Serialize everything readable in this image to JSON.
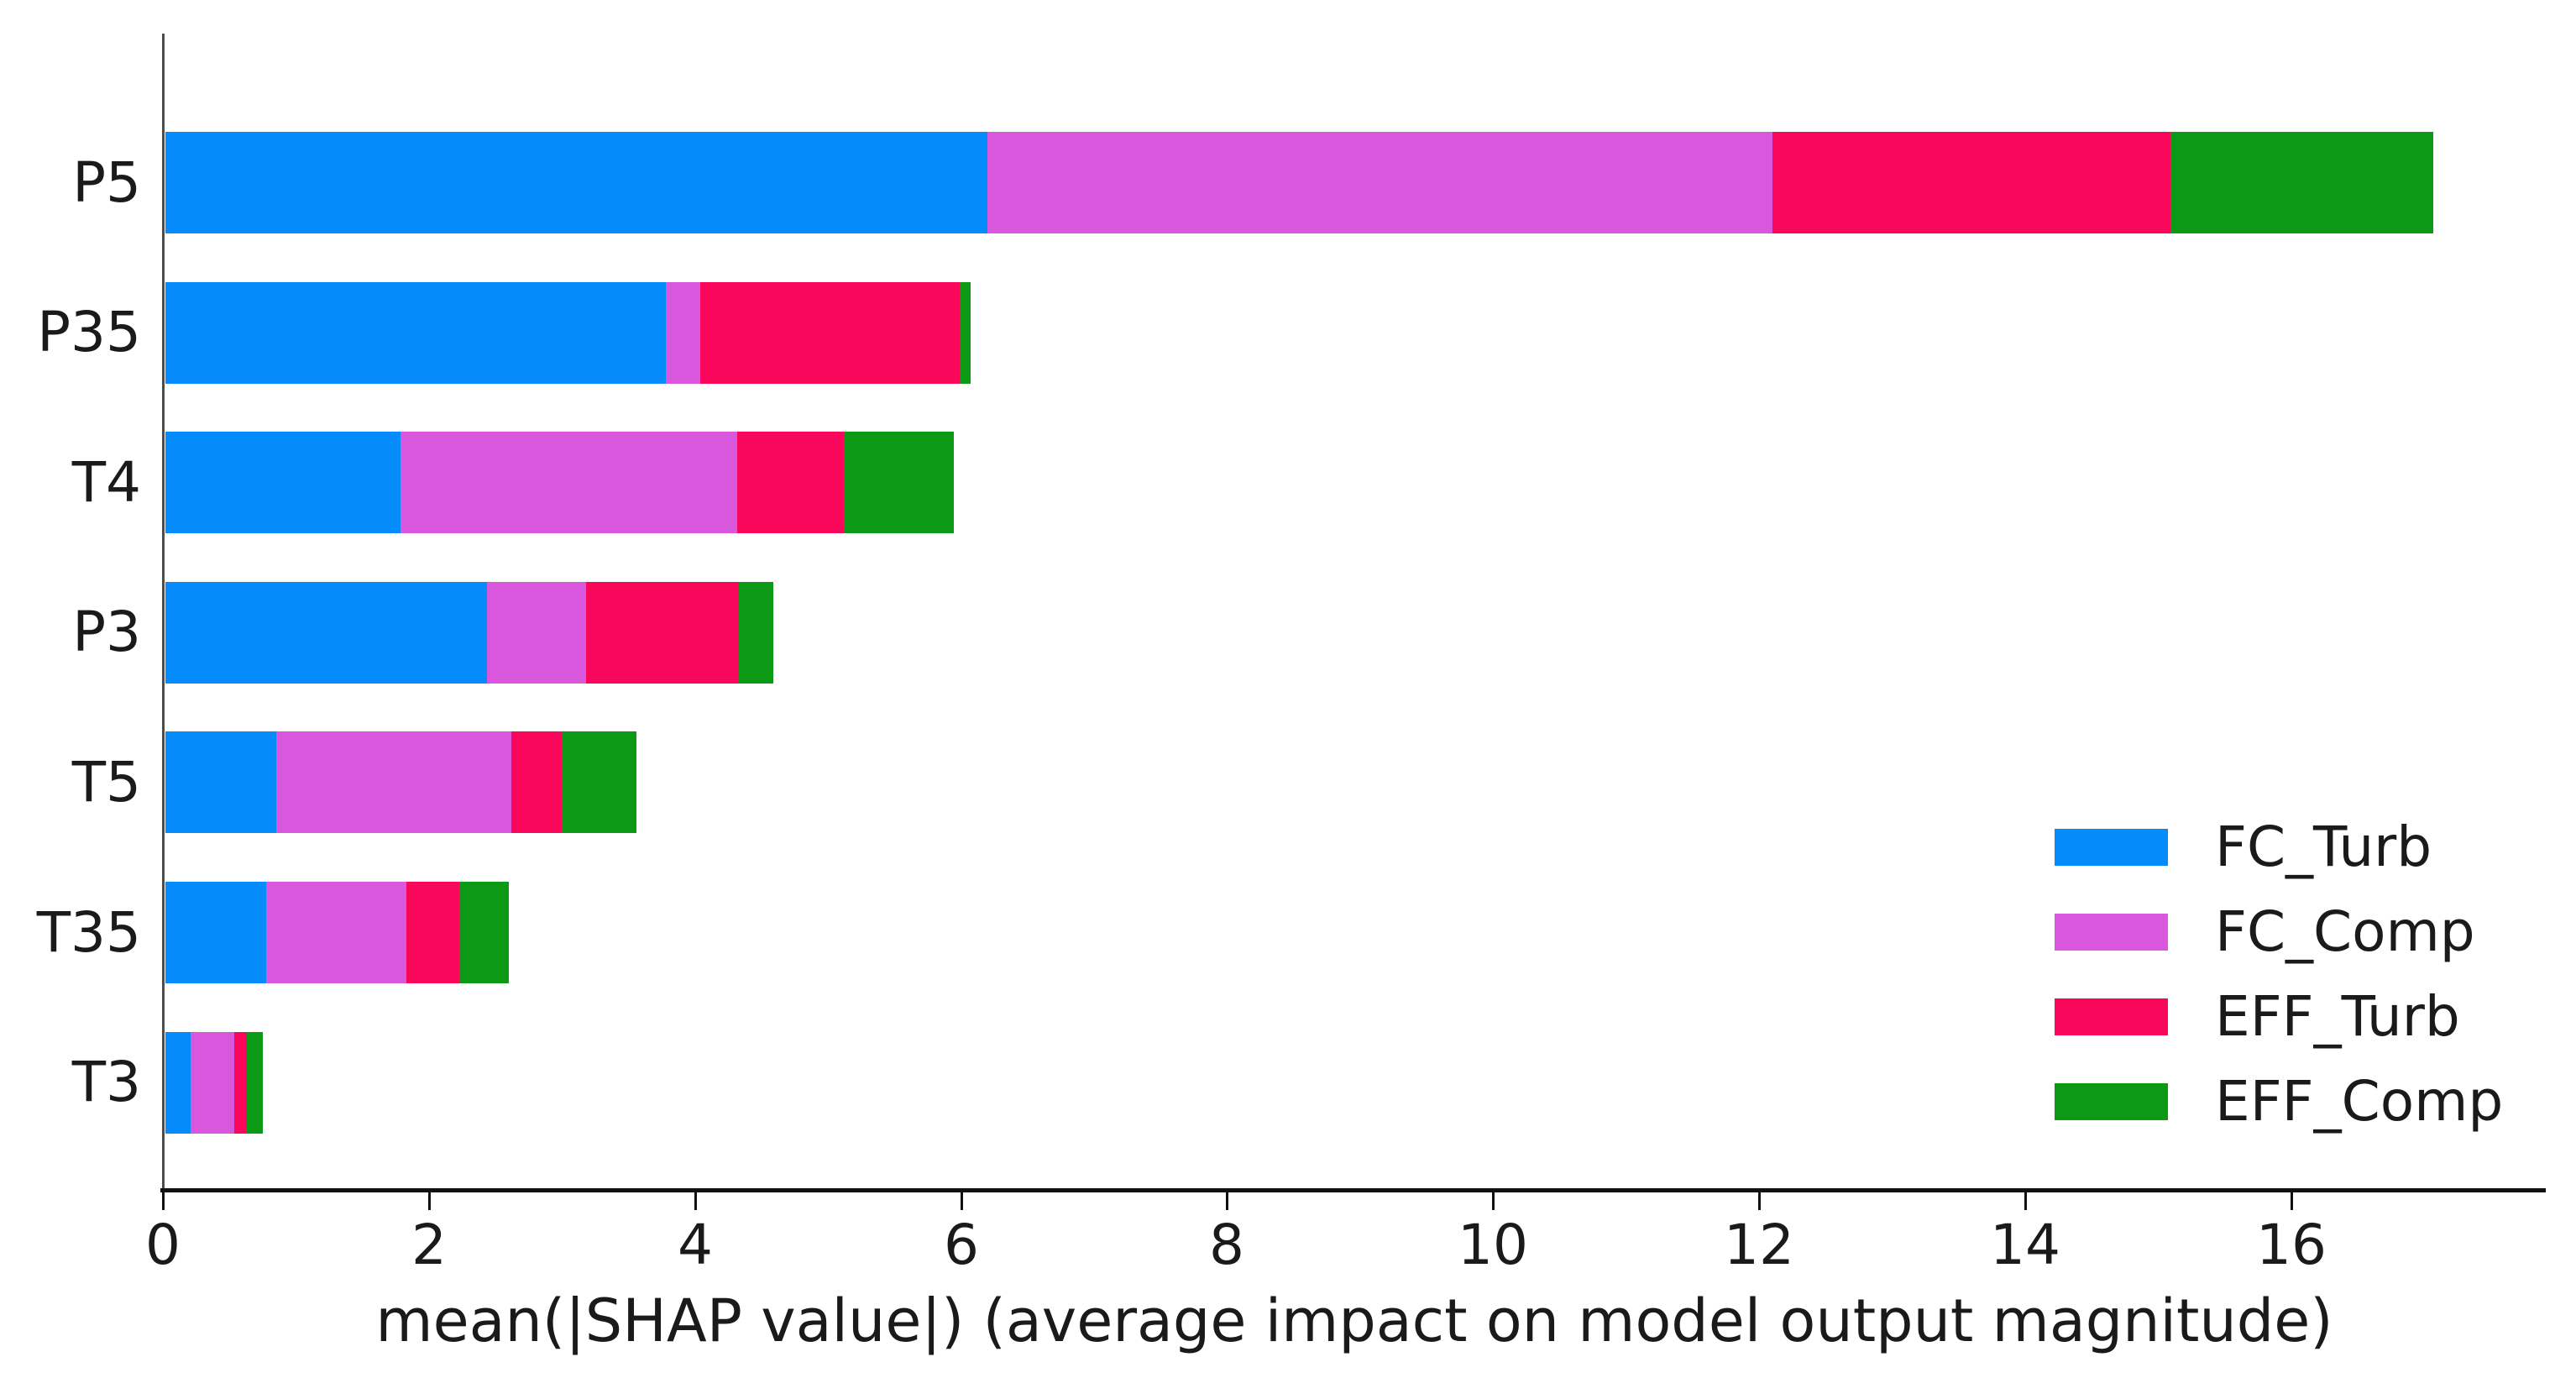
{
  "chart_data": {
    "type": "bar",
    "orientation": "horizontal",
    "stacked": true,
    "categories": [
      "P5",
      "P35",
      "T4",
      "P3",
      "T5",
      "T35",
      "T3"
    ],
    "series": [
      {
        "name": "FC_Turb",
        "color": "#068cfa",
        "values": [
          6.18,
          3.76,
          1.77,
          2.42,
          0.83,
          0.76,
          0.19
        ]
      },
      {
        "name": "FC_Comp",
        "color": "#d957dc",
        "values": [
          5.9,
          0.26,
          2.53,
          0.74,
          1.77,
          1.05,
          0.33
        ]
      },
      {
        "name": "EFF_Turb",
        "color": "#f9075a",
        "values": [
          2.99,
          1.95,
          0.8,
          1.15,
          0.38,
          0.4,
          0.09
        ]
      },
      {
        "name": "EFF_Comp",
        "color": "#0c9a16",
        "values": [
          1.98,
          0.08,
          0.83,
          0.26,
          0.56,
          0.37,
          0.12
        ]
      }
    ],
    "totals": [
      17.05,
      6.05,
      5.93,
      4.57,
      3.54,
      2.58,
      0.73
    ],
    "title": "",
    "xlabel": "mean(|SHAP value|) (average impact on model output magnitude)",
    "ylabel": "",
    "xlim": [
      0,
      17.9
    ],
    "xticks": [
      0,
      2,
      4,
      6,
      8,
      10,
      12,
      14,
      16
    ],
    "grid": false,
    "legend_position": "lower right",
    "legend_labels": [
      "FC_Turb",
      "FC_Comp",
      "EFF_Turb",
      "EFF_Comp"
    ]
  },
  "axis_colors": {
    "spine": "#4d4d4d",
    "axis_line": "#111111",
    "text": "#1a1a1a"
  }
}
